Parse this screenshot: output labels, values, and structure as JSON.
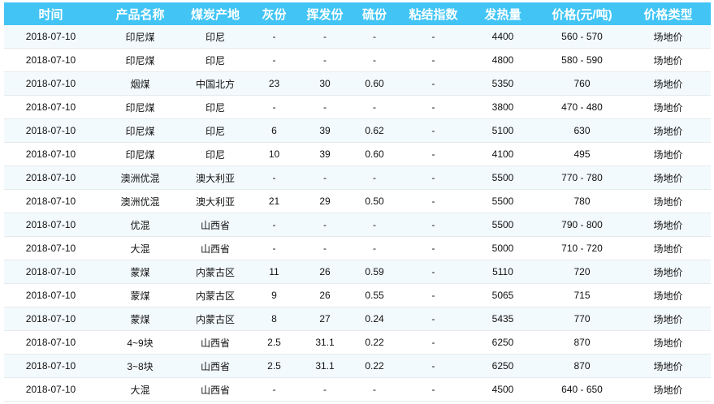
{
  "table": {
    "headers": [
      "时间",
      "产品名称",
      "煤炭产地",
      "灰份",
      "挥发份",
      "硫份",
      "粘结指数",
      "发热量",
      "价格(元/吨)",
      "价格类型"
    ],
    "rows": [
      [
        "2018-07-10",
        "印尼煤",
        "印尼",
        "-",
        "-",
        "-",
        "-",
        "4400",
        "560 - 570",
        "场地价"
      ],
      [
        "2018-07-10",
        "印尼煤",
        "印尼",
        "-",
        "-",
        "-",
        "-",
        "4800",
        "580 - 590",
        "场地价"
      ],
      [
        "2018-07-10",
        "烟煤",
        "中国北方",
        "23",
        "30",
        "0.60",
        "-",
        "5350",
        "760",
        "场地价"
      ],
      [
        "2018-07-10",
        "印尼煤",
        "印尼",
        "-",
        "-",
        "-",
        "-",
        "3800",
        "470 - 480",
        "场地价"
      ],
      [
        "2018-07-10",
        "印尼煤",
        "印尼",
        "6",
        "39",
        "0.62",
        "-",
        "5100",
        "630",
        "场地价"
      ],
      [
        "2018-07-10",
        "印尼煤",
        "印尼",
        "10",
        "39",
        "0.60",
        "-",
        "4100",
        "495",
        "场地价"
      ],
      [
        "2018-07-10",
        "澳洲优混",
        "澳大利亚",
        "-",
        "-",
        "-",
        "-",
        "5500",
        "770 - 780",
        "场地价"
      ],
      [
        "2018-07-10",
        "澳洲优混",
        "澳大利亚",
        "21",
        "29",
        "0.50",
        "-",
        "5500",
        "780",
        "场地价"
      ],
      [
        "2018-07-10",
        "优混",
        "山西省",
        "-",
        "-",
        "-",
        "-",
        "5500",
        "790 - 800",
        "场地价"
      ],
      [
        "2018-07-10",
        "大混",
        "山西省",
        "-",
        "-",
        "-",
        "-",
        "5000",
        "710 - 720",
        "场地价"
      ],
      [
        "2018-07-10",
        "蒙煤",
        "内蒙古区",
        "11",
        "26",
        "0.59",
        "-",
        "5110",
        "720",
        "场地价"
      ],
      [
        "2018-07-10",
        "蒙煤",
        "内蒙古区",
        "9",
        "26",
        "0.55",
        "-",
        "5065",
        "715",
        "场地价"
      ],
      [
        "2018-07-10",
        "蒙煤",
        "内蒙古区",
        "8",
        "27",
        "0.24",
        "-",
        "5435",
        "770",
        "场地价"
      ],
      [
        "2018-07-10",
        "4~9块",
        "山西省",
        "2.5",
        "31.1",
        "0.22",
        "-",
        "6250",
        "870",
        "场地价"
      ],
      [
        "2018-07-10",
        "3~8块",
        "山西省",
        "2.5",
        "31.1",
        "0.22",
        "-",
        "6250",
        "870",
        "场地价"
      ],
      [
        "2018-07-10",
        "大混",
        "山西省",
        "-",
        "-",
        "-",
        "-",
        "4500",
        "640 - 650",
        "场地价"
      ]
    ]
  },
  "colors": {
    "header_bg": "#42c5f5",
    "odd_row_bg": "#f3fafd"
  }
}
